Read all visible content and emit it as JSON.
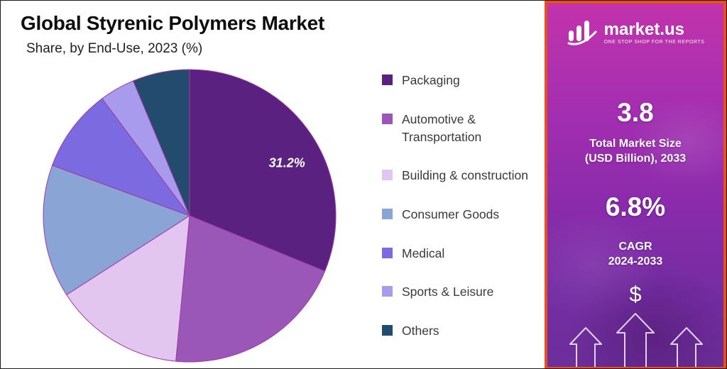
{
  "header": {
    "title": "Global Styrenic Polymers Market",
    "subtitle": "Share, by End-Use, 2023 (%)"
  },
  "chart_data": {
    "type": "pie",
    "title": "Global Styrenic Polymers Market",
    "subtitle": "Share, by End-Use, 2023 (%)",
    "unit": "%",
    "direction": "clockwise",
    "start_angle": "top",
    "legend_position": "right",
    "slice_outline_color": "#a13ba3",
    "slices": [
      {
        "label": "Packaging",
        "value": 31.2,
        "color": "#5a2181"
      },
      {
        "label": "Automotive & Transportation",
        "value": 20.3,
        "color": "#9a57b8"
      },
      {
        "label": "Building & construction",
        "value": 14.4,
        "color": "#e2c6f0"
      },
      {
        "label": "Consumer Goods",
        "value": 14.7,
        "color": "#8ba4d6"
      },
      {
        "label": "Medical",
        "value": 9.2,
        "color": "#7b6ae0"
      },
      {
        "label": "Sports & Leisure",
        "value": 3.9,
        "color": "#a89bee"
      },
      {
        "label": "Others",
        "value": 6.3,
        "color": "#224b6d"
      }
    ],
    "inner_label": {
      "slice": "Packaging",
      "text": "31.2%"
    },
    "notes": "Only the Packaging slice shows an explicit data label (31.2%); other slice values estimated from arc angles."
  },
  "side_panel": {
    "brand": {
      "name": "market.us",
      "tagline": "ONE STOP SHOP FOR THE REPORTS"
    },
    "market_size": {
      "value": "3.8",
      "label_line1": "Total Market Size",
      "label_line2": "(USD Billion), 2033"
    },
    "cagr": {
      "value": "6.8%",
      "label_line1": "CAGR",
      "label_line2": "2024-2033"
    },
    "dollar_symbol": "$",
    "accent_border_color": "#ea4e1d",
    "gradient_top": "#c233ab",
    "gradient_bottom": "#6b2f9b"
  }
}
